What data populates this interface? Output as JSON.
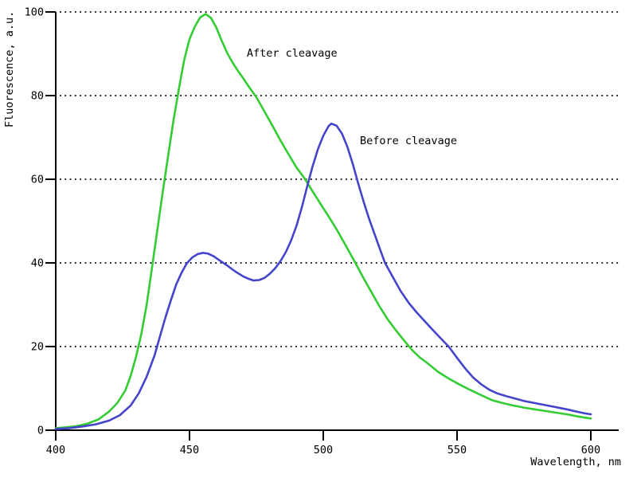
{
  "chart_data": {
    "type": "line",
    "title": "",
    "xlabel": "Wavelength, nm",
    "ylabel": "Fluorescence, a.u.",
    "xlim": [
      400,
      610
    ],
    "ylim": [
      0,
      100
    ],
    "x_ticks": [
      400,
      450,
      500,
      550,
      600
    ],
    "y_ticks": [
      0,
      20,
      40,
      60,
      80,
      100
    ],
    "grid": "horizontal-dotted",
    "legend_position": "labels-on-plot",
    "series": [
      {
        "name": "After cleavage",
        "color": "#33cc33",
        "points": [
          [
            400,
            0.5
          ],
          [
            404,
            0.7
          ],
          [
            408,
            1.0
          ],
          [
            412,
            1.6
          ],
          [
            416,
            2.6
          ],
          [
            420,
            4.5
          ],
          [
            423,
            6.5
          ],
          [
            426,
            9.5
          ],
          [
            428,
            13
          ],
          [
            430,
            17.5
          ],
          [
            432,
            23
          ],
          [
            434,
            30
          ],
          [
            436,
            39
          ],
          [
            438,
            48
          ],
          [
            440,
            57
          ],
          [
            442,
            65.5
          ],
          [
            444,
            74
          ],
          [
            446,
            81.5
          ],
          [
            448,
            88.5
          ],
          [
            450,
            93.5
          ],
          [
            452,
            96.5
          ],
          [
            454,
            98.7
          ],
          [
            456,
            99.5
          ],
          [
            458,
            98.6
          ],
          [
            460,
            96.3
          ],
          [
            462,
            93.2
          ],
          [
            464,
            90.3
          ],
          [
            466,
            88
          ],
          [
            468,
            86
          ],
          [
            470,
            84.2
          ],
          [
            472,
            82.3
          ],
          [
            475,
            79.6
          ],
          [
            478,
            76.2
          ],
          [
            481,
            72.8
          ],
          [
            484,
            69.3
          ],
          [
            487,
            66
          ],
          [
            490,
            62.8
          ],
          [
            493,
            60.2
          ],
          [
            496,
            57.1
          ],
          [
            499,
            54.1
          ],
          [
            502,
            51.1
          ],
          [
            505,
            48
          ],
          [
            508,
            44.6
          ],
          [
            510,
            42.3
          ],
          [
            512,
            40
          ],
          [
            515,
            36.4
          ],
          [
            518,
            33
          ],
          [
            521,
            29.6
          ],
          [
            524,
            26.6
          ],
          [
            527,
            24
          ],
          [
            530,
            21.6
          ],
          [
            533,
            19.3
          ],
          [
            536,
            17.4
          ],
          [
            539,
            16
          ],
          [
            543,
            13.9
          ],
          [
            547,
            12.3
          ],
          [
            551,
            10.9
          ],
          [
            555,
            9.6
          ],
          [
            559,
            8.4
          ],
          [
            563,
            7.2
          ],
          [
            567,
            6.5
          ],
          [
            571,
            5.9
          ],
          [
            575,
            5.4
          ],
          [
            579,
            5.0
          ],
          [
            583,
            4.6
          ],
          [
            587,
            4.2
          ],
          [
            591,
            3.8
          ],
          [
            595,
            3.3
          ],
          [
            598,
            3.0
          ],
          [
            600,
            2.8
          ]
        ]
      },
      {
        "name": "Before cleavage",
        "color": "#4444cc",
        "points": [
          [
            400,
            0.3
          ],
          [
            405,
            0.5
          ],
          [
            410,
            0.9
          ],
          [
            415,
            1.4
          ],
          [
            420,
            2.3
          ],
          [
            424,
            3.6
          ],
          [
            428,
            5.9
          ],
          [
            431,
            8.8
          ],
          [
            434,
            12.8
          ],
          [
            437,
            18
          ],
          [
            439,
            22.5
          ],
          [
            441,
            27
          ],
          [
            443,
            31
          ],
          [
            445,
            34.8
          ],
          [
            447,
            37.6
          ],
          [
            449,
            39.9
          ],
          [
            451,
            41.3
          ],
          [
            453,
            42.1
          ],
          [
            455,
            42.4
          ],
          [
            457,
            42.2
          ],
          [
            459,
            41.6
          ],
          [
            461,
            40.7
          ],
          [
            464,
            39.4
          ],
          [
            467,
            38
          ],
          [
            470,
            36.8
          ],
          [
            472,
            36.2
          ],
          [
            474,
            35.8
          ],
          [
            476,
            35.9
          ],
          [
            478,
            36.4
          ],
          [
            480,
            37.4
          ],
          [
            482,
            38.7
          ],
          [
            484,
            40.4
          ],
          [
            486,
            42.6
          ],
          [
            488,
            45.4
          ],
          [
            490,
            48.9
          ],
          [
            492,
            53.3
          ],
          [
            494,
            58.3
          ],
          [
            496,
            63.1
          ],
          [
            498,
            67.2
          ],
          [
            500,
            70.4
          ],
          [
            502,
            72.7
          ],
          [
            503,
            73.3
          ],
          [
            505,
            72.8
          ],
          [
            507,
            70.9
          ],
          [
            509,
            67.8
          ],
          [
            511,
            63.7
          ],
          [
            513,
            59.1
          ],
          [
            515,
            54.8
          ],
          [
            517,
            50.8
          ],
          [
            519,
            47.2
          ],
          [
            521,
            43.6
          ],
          [
            523,
            40.1
          ],
          [
            526,
            36.6
          ],
          [
            529,
            33.2
          ],
          [
            532,
            30.4
          ],
          [
            535,
            28.1
          ],
          [
            538,
            26.0
          ],
          [
            541,
            23.9
          ],
          [
            544,
            21.9
          ],
          [
            547,
            19.9
          ],
          [
            550,
            17.3
          ],
          [
            553,
            14.8
          ],
          [
            556,
            12.6
          ],
          [
            559,
            11.0
          ],
          [
            562,
            9.7
          ],
          [
            565,
            8.8
          ],
          [
            568,
            8.2
          ],
          [
            571,
            7.7
          ],
          [
            575,
            7.0
          ],
          [
            579,
            6.5
          ],
          [
            583,
            6.0
          ],
          [
            587,
            5.5
          ],
          [
            591,
            5.0
          ],
          [
            595,
            4.4
          ],
          [
            598,
            4.0
          ],
          [
            600,
            3.8
          ]
        ]
      }
    ],
    "annotations": [
      {
        "text": "After cleavage",
        "x": 471.4,
        "y": 89.3
      },
      {
        "text": "Before cleavage",
        "x": 513.7,
        "y": 68.4
      }
    ]
  }
}
